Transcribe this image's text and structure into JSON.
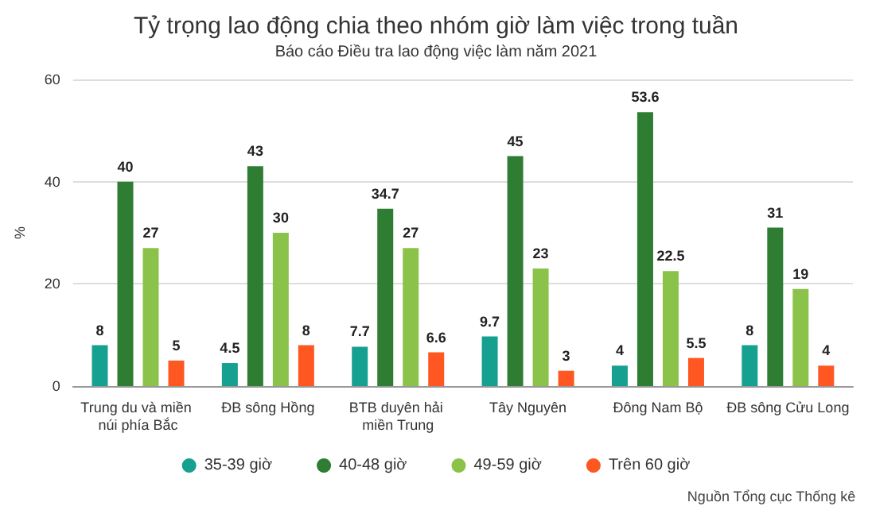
{
  "chart_data": {
    "type": "bar",
    "title": "Tỷ trọng lao động chia theo nhóm giờ làm việc trong tuần",
    "subtitle": "Báo cáo Điều tra lao động việc làm năm 2021",
    "ylabel": "%",
    "categories": [
      "Trung du và miền núi phía Bắc",
      "ĐB sông Hồng",
      "BTB duyên hải miền Trung",
      "Tây Nguyên",
      "Đông Nam Bộ",
      "ĐB sông Cửu Long"
    ],
    "series": [
      {
        "name": "35-39 giờ",
        "color": "#16a08f",
        "values": [
          8,
          4.5,
          7.7,
          9.7,
          4,
          8
        ]
      },
      {
        "name": "40-48 giờ",
        "color": "#2e7d32",
        "values": [
          40,
          43,
          34.7,
          45,
          53.6,
          31
        ]
      },
      {
        "name": "49-59 giờ",
        "color": "#8bc34a",
        "values": [
          27,
          30,
          27,
          23,
          22.5,
          19
        ]
      },
      {
        "name": "Trên 60 giờ",
        "color": "#ff5722",
        "values": [
          5,
          8,
          6.6,
          3,
          5.5,
          4
        ]
      }
    ],
    "ylim": [
      0,
      60
    ],
    "yticks": [
      0,
      20,
      40,
      60
    ],
    "grid": "y",
    "legend": "bottom",
    "data_labels": true,
    "annotations": [
      "Nguồn Tổng cục Thống kê"
    ]
  }
}
